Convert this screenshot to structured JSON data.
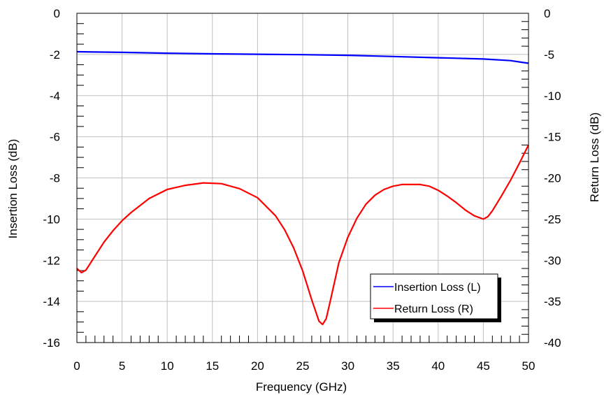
{
  "chart_data": {
    "type": "line",
    "title": "",
    "xlabel": "Frequency (GHz)",
    "ylabel_left": "Insertion Loss (dB)",
    "ylabel_right": "Return Loss (dB)",
    "xlim": [
      0,
      50
    ],
    "ylim_left": [
      -16,
      0
    ],
    "ylim_right": [
      -40,
      0
    ],
    "x_ticks": [
      "0",
      "5",
      "10",
      "15",
      "20",
      "25",
      "30",
      "35",
      "40",
      "45",
      "50"
    ],
    "y_ticks_left": [
      "0",
      "-2",
      "-4",
      "-6",
      "-8",
      "-10",
      "-12",
      "-14",
      "-16"
    ],
    "y_ticks_right": [
      "0",
      "-5",
      "-10",
      "-15",
      "-20",
      "-25",
      "-30",
      "-35",
      "-40"
    ],
    "grid": true,
    "legend_position": "bottom-right",
    "series": [
      {
        "name": "Insertion Loss (L)",
        "axis": "left",
        "color": "#0000ff",
        "x": [
          0,
          5,
          10,
          15,
          20,
          25,
          30,
          35,
          40,
          45,
          48,
          50
        ],
        "y": [
          -1.87,
          -1.9,
          -1.94,
          -1.97,
          -1.99,
          -2.01,
          -2.04,
          -2.1,
          -2.16,
          -2.22,
          -2.3,
          -2.43
        ]
      },
      {
        "name": "Return Loss (R)",
        "axis": "right",
        "color": "#ff0000",
        "x": [
          0,
          0.5,
          1,
          2,
          3,
          4,
          5,
          6,
          8,
          10,
          12,
          14,
          16,
          18,
          20,
          22,
          23,
          24,
          25,
          26,
          26.8,
          27.2,
          27.6,
          28,
          29,
          30,
          31,
          32,
          33,
          34,
          35,
          36,
          37,
          38,
          39,
          40,
          41,
          42,
          43,
          44,
          45,
          45.5,
          46,
          47,
          48,
          49,
          50
        ],
        "y": [
          -31,
          -31.5,
          -31.2,
          -29.5,
          -27.8,
          -26.4,
          -25.2,
          -24.2,
          -22.5,
          -21.4,
          -20.9,
          -20.6,
          -20.7,
          -21.3,
          -22.4,
          -24.6,
          -26.3,
          -28.5,
          -31.3,
          -34.8,
          -37.4,
          -37.8,
          -37.1,
          -35.2,
          -30.3,
          -27.2,
          -24.9,
          -23.2,
          -22.1,
          -21.4,
          -21.0,
          -20.8,
          -20.8,
          -20.8,
          -21.0,
          -21.5,
          -22.2,
          -23.0,
          -23.9,
          -24.6,
          -25.0,
          -24.7,
          -24.0,
          -22.2,
          -20.3,
          -18.2,
          -16.0
        ]
      }
    ]
  }
}
